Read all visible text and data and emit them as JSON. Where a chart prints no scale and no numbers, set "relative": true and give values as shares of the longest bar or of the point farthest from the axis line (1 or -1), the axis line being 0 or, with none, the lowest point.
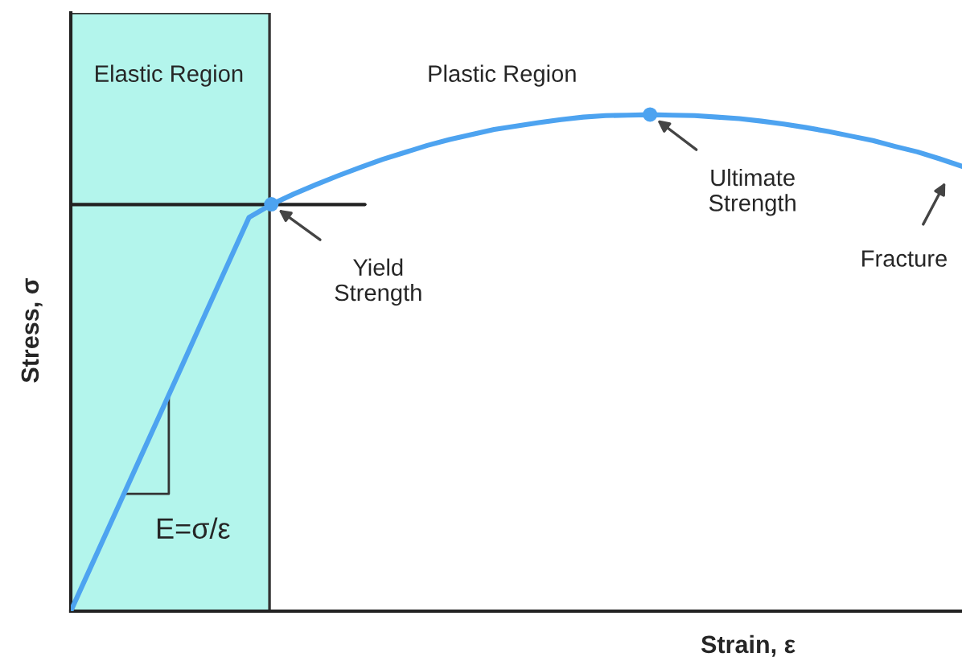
{
  "chart_data": {
    "type": "line",
    "relative": true,
    "xlabel": "Strain, ε",
    "ylabel": "Stress, σ",
    "marker": "none",
    "line_style": "solid",
    "categories": [
      null,
      null,
      null,
      null,
      null,
      null,
      null,
      null,
      null,
      null,
      null,
      null,
      null,
      null,
      null,
      null,
      null,
      null,
      null,
      null,
      null,
      null,
      null,
      null,
      null,
      null,
      null,
      null,
      null,
      null,
      null,
      null,
      null,
      null,
      null,
      null,
      null,
      null,
      null,
      null,
      null
    ],
    "series": [
      {
        "color": "#4da3f0",
        "values": [
          0,
          0.099,
          0.198,
          0.297,
          0.396,
          0.495,
          0.595,
          0.694,
          0.793,
          0.819,
          0.84,
          0.859,
          0.877,
          0.894,
          0.91,
          0.924,
          0.938,
          0.95,
          0.96,
          0.97,
          0.977,
          0.984,
          0.99,
          0.995,
          0.998,
          0.999,
          1.0,
          0.999,
          0.998,
          0.995,
          0.992,
          0.987,
          0.981,
          0.974,
          0.966,
          0.957,
          0.948,
          0.936,
          0.925,
          0.911,
          0.896
        ]
      }
    ],
    "ref_lines": [
      {
        "axis": "y",
        "value": 0.819,
        "color": "#222222"
      }
    ],
    "annotations": [
      "Yield Strength",
      "Ultimate Strength",
      "Fracture",
      "Plastic Region",
      "E=σ/ε",
      "Elastic Region"
    ]
  }
}
